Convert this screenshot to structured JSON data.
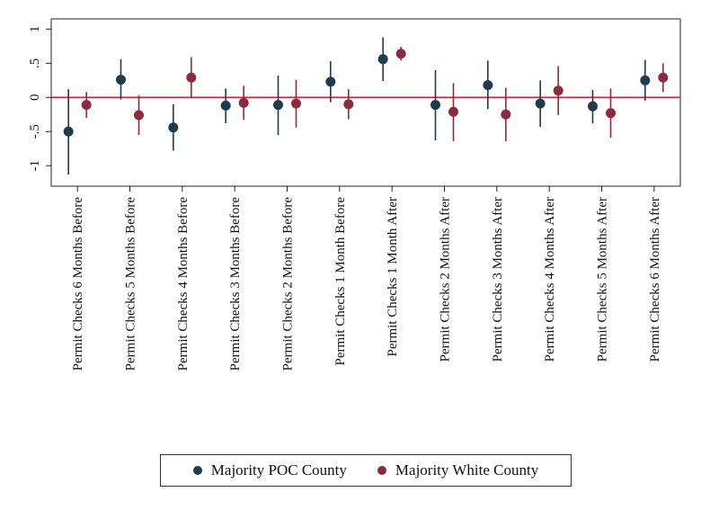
{
  "chart_data": {
    "type": "scatter",
    "subtype": "coefficient-plot-with-confidence-intervals",
    "categories": [
      "Permit Checks 6 Months Before",
      "Permit Checks 5 Months Before",
      "Permit Checks 4 Months Before",
      "Permit Checks 3 Months Before",
      "Permit Checks 2 Months Before",
      "Permit Checks 1 Month Before",
      "Permit Checks 1 Month After",
      "Permit Checks 2 Months After",
      "Permit Checks 3 Months After",
      "Permit Checks 4 Months After",
      "Permit Checks 5 Months After",
      "Permit Checks 6 Months After"
    ],
    "series": [
      {
        "name": "Majority POC County",
        "color": "#1f3b4d",
        "values": [
          -0.5,
          0.26,
          -0.44,
          -0.12,
          -0.11,
          0.23,
          0.56,
          -0.11,
          0.18,
          -0.09,
          -0.13,
          0.25
        ],
        "ci_low": [
          -1.13,
          -0.03,
          -0.78,
          -0.38,
          -0.55,
          -0.07,
          0.24,
          -0.63,
          -0.17,
          -0.43,
          -0.38,
          -0.05
        ],
        "ci_high": [
          0.12,
          0.56,
          -0.1,
          0.13,
          0.32,
          0.53,
          0.88,
          0.4,
          0.54,
          0.25,
          0.11,
          0.55
        ]
      },
      {
        "name": "Majority White County",
        "color": "#8c2a3e",
        "values": [
          -0.11,
          -0.26,
          0.29,
          -0.08,
          -0.09,
          -0.1,
          0.64,
          -0.21,
          -0.25,
          0.1,
          -0.23,
          0.29
        ],
        "ci_low": [
          -0.3,
          -0.55,
          -0.01,
          -0.33,
          -0.44,
          -0.32,
          0.54,
          -0.64,
          -0.64,
          -0.26,
          -0.59,
          0.08
        ],
        "ci_high": [
          0.08,
          0.03,
          0.59,
          0.17,
          0.26,
          0.12,
          0.74,
          0.21,
          0.14,
          0.46,
          0.13,
          0.5
        ]
      }
    ],
    "y_ticks": [
      {
        "value": 1,
        "label": "1"
      },
      {
        "value": 0.5,
        "label": ".5"
      },
      {
        "value": 0,
        "label": "0"
      },
      {
        "value": -0.5,
        "label": "-.5"
      },
      {
        "value": -1,
        "label": "-1"
      }
    ],
    "ylim": [
      -1.3,
      1.15
    ],
    "reference_line": {
      "value": 0,
      "color": "#c0273d"
    },
    "xlabel": "",
    "ylabel": "",
    "title": "",
    "grid": false,
    "legend_position": "bottom"
  }
}
